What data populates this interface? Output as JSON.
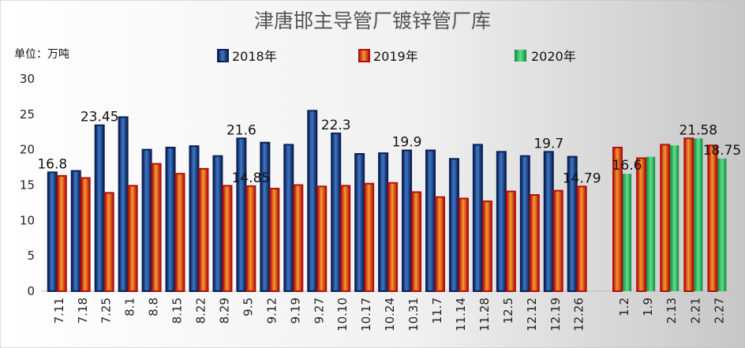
{
  "chart_data": {
    "type": "bar",
    "title": "津唐邯主导管厂镀锌管厂库",
    "unit_label": "单位：万吨",
    "ylim": [
      0,
      30
    ],
    "yticks": [
      0,
      5,
      10,
      15,
      20,
      25,
      30
    ],
    "legend_position": "top",
    "grid": false,
    "groups": [
      {
        "categories": [
          "7.11",
          "7.18",
          "7.25",
          "8.1",
          "8.8",
          "8.15",
          "8.22",
          "8.29",
          "9.5",
          "9.12",
          "9.19",
          "9.27",
          "10.10",
          "10.17",
          "10.24",
          "10.31",
          "11.7",
          "11.14",
          "11.28",
          "12.5",
          "12.12",
          "12.19",
          "12.26"
        ],
        "series": [
          {
            "name": "2018年",
            "values": [
              16.8,
              17.0,
              23.45,
              24.6,
              20.0,
              20.3,
              20.5,
              19.1,
              21.6,
              21.0,
              20.7,
              25.5,
              22.3,
              19.4,
              19.5,
              19.9,
              19.9,
              18.7,
              20.7,
              19.7,
              19.1,
              19.7,
              19.0
            ]
          },
          {
            "name": "2019年",
            "values": [
              16.3,
              16.0,
              13.9,
              14.9,
              18.0,
              16.6,
              17.3,
              14.9,
              14.85,
              14.5,
              15.0,
              14.8,
              14.9,
              15.2,
              15.3,
              14.0,
              13.3,
              13.1,
              12.7,
              14.1,
              13.6,
              14.2,
              14.79
            ]
          }
        ]
      },
      {
        "categories": [
          "1.2",
          "1.9",
          "2.13",
          "2.21",
          "2.27"
        ],
        "series": [
          {
            "name": "2019年",
            "values": [
              20.3,
              18.8,
              20.7,
              21.6,
              20.6
            ]
          },
          {
            "name": "2020年",
            "values": [
              16.6,
              19.0,
              20.6,
              21.58,
              18.75
            ]
          }
        ]
      }
    ],
    "data_labels": [
      {
        "text": "16.8",
        "group": 0,
        "series": 0,
        "index": 0
      },
      {
        "text": "23.45",
        "group": 0,
        "series": 0,
        "index": 2
      },
      {
        "text": "21.6",
        "group": 0,
        "series": 0,
        "index": 8
      },
      {
        "text": "14.85",
        "group": 0,
        "series": 1,
        "index": 8
      },
      {
        "text": "22.3",
        "group": 0,
        "series": 0,
        "index": 12
      },
      {
        "text": "19.9",
        "group": 0,
        "series": 0,
        "index": 15
      },
      {
        "text": "19.7",
        "group": 0,
        "series": 0,
        "index": 21
      },
      {
        "text": "14.79",
        "group": 0,
        "series": 1,
        "index": 22
      },
      {
        "text": "16.6",
        "group": 1,
        "series": 1,
        "index": 0
      },
      {
        "text": "21.58",
        "group": 1,
        "series": 1,
        "index": 3
      },
      {
        "text": "18.75",
        "group": 1,
        "series": 1,
        "index": 4
      }
    ],
    "legend": [
      "2018年",
      "2019年",
      "2020年"
    ],
    "colors": {
      "2018年": "#0f2a6b",
      "2019年": "#c81414",
      "2020年": "#16a34a"
    }
  }
}
